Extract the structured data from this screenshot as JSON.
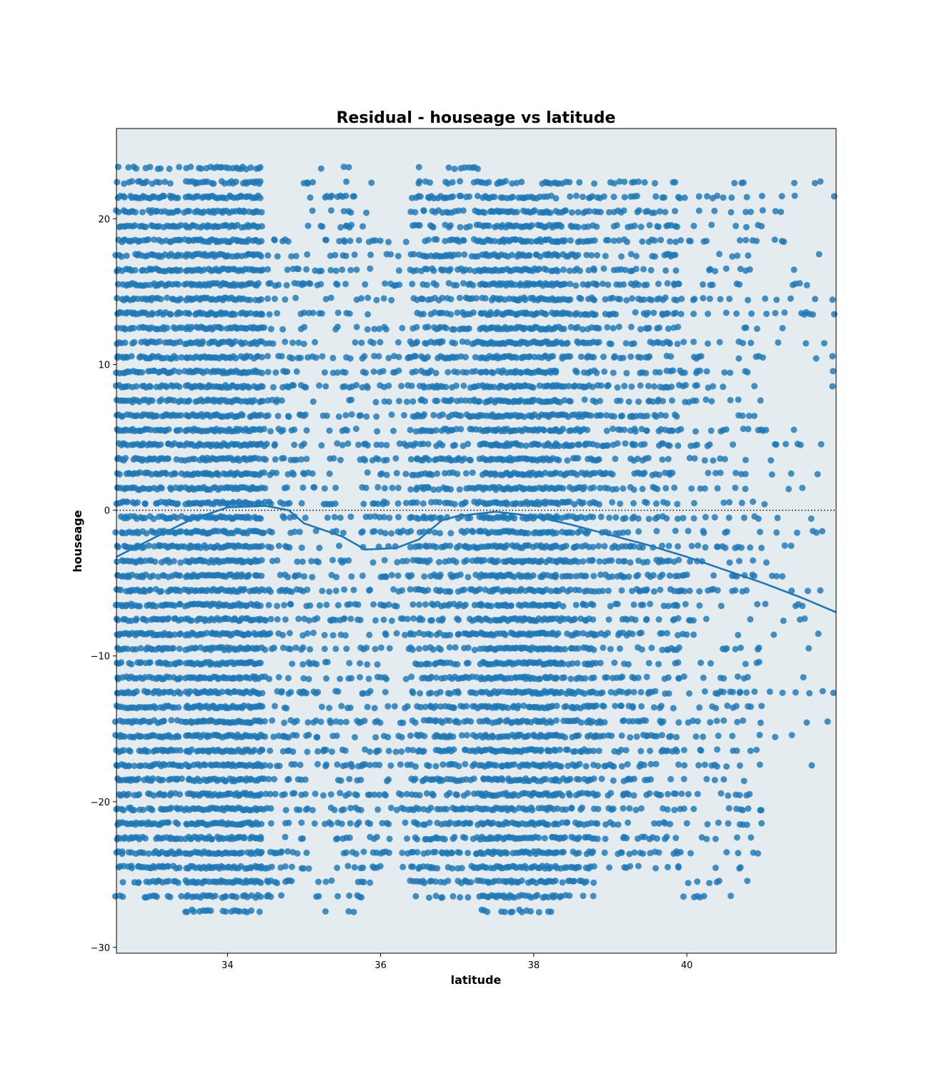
{
  "chart_data": {
    "type": "scatter",
    "subtype": "residual plot with lowess fit",
    "title": "Residual - houseage vs latitude",
    "xlabel": "latitude",
    "ylabel": "houseage",
    "xlim": [
      32.55,
      41.95
    ],
    "ylim": [
      -30.4,
      26.2
    ],
    "xticks": [
      34,
      36,
      38,
      40
    ],
    "yticks": [
      -30,
      -20,
      -10,
      0,
      10,
      20
    ],
    "grid": false,
    "legend": "none",
    "reference_line": {
      "y": 0,
      "style": "dotted",
      "color": "#000000"
    },
    "colors": {
      "points": "#1f77b4",
      "fit_line": "#1f77b4",
      "background": "#e5ecf0"
    },
    "point_clusters": [
      {
        "x": [
          32.55,
          33.4
        ],
        "y": [
          -26.5,
          23.5
        ],
        "density": 0.8
      },
      {
        "x": [
          33.45,
          34.45
        ],
        "y": [
          -27.5,
          23.5
        ],
        "density": 0.95
      },
      {
        "x": [
          34.45,
          35.0
        ],
        "y": [
          -26.5,
          19.5
        ],
        "density": 0.35
      },
      {
        "x": [
          35.0,
          35.9
        ],
        "y": [
          -27.5,
          23.5
        ],
        "density": 0.25
      },
      {
        "x": [
          35.9,
          36.4
        ],
        "y": [
          -24.5,
          18.5
        ],
        "density": 0.3
      },
      {
        "x": [
          36.4,
          37.3
        ],
        "y": [
          -26.5,
          23.5
        ],
        "density": 0.55
      },
      {
        "x": [
          37.3,
          38.3
        ],
        "y": [
          -27.8,
          23.2
        ],
        "density": 0.9
      },
      {
        "x": [
          38.3,
          38.8
        ],
        "y": [
          -26.5,
          23.2
        ],
        "density": 0.65
      },
      {
        "x": [
          38.8,
          39.9
        ],
        "y": [
          -25.0,
          23.0
        ],
        "density": 0.4
      },
      {
        "x": [
          39.9,
          41.0
        ],
        "y": [
          -27.0,
          23.0
        ],
        "density": 0.2
      },
      {
        "x": [
          41.0,
          41.95
        ],
        "y": [
          -18.0,
          23.0
        ],
        "density": 0.07
      }
    ],
    "fit_line": {
      "x": [
        32.55,
        33.0,
        33.5,
        34.0,
        34.5,
        34.8,
        35.0,
        35.5,
        35.8,
        36.2,
        36.5,
        36.8,
        37.0,
        37.5,
        38.0,
        38.5,
        39.0,
        39.5,
        40.0,
        40.5,
        41.0,
        41.5,
        41.95
      ],
      "y": [
        -3.2,
        -2.0,
        -0.7,
        0.2,
        0.3,
        0.0,
        -0.9,
        -1.8,
        -2.7,
        -2.6,
        -2.0,
        -0.7,
        -0.4,
        -0.1,
        -0.4,
        -1.0,
        -1.7,
        -2.4,
        -3.2,
        -4.1,
        -5.0,
        -6.0,
        -7.0
      ]
    }
  }
}
